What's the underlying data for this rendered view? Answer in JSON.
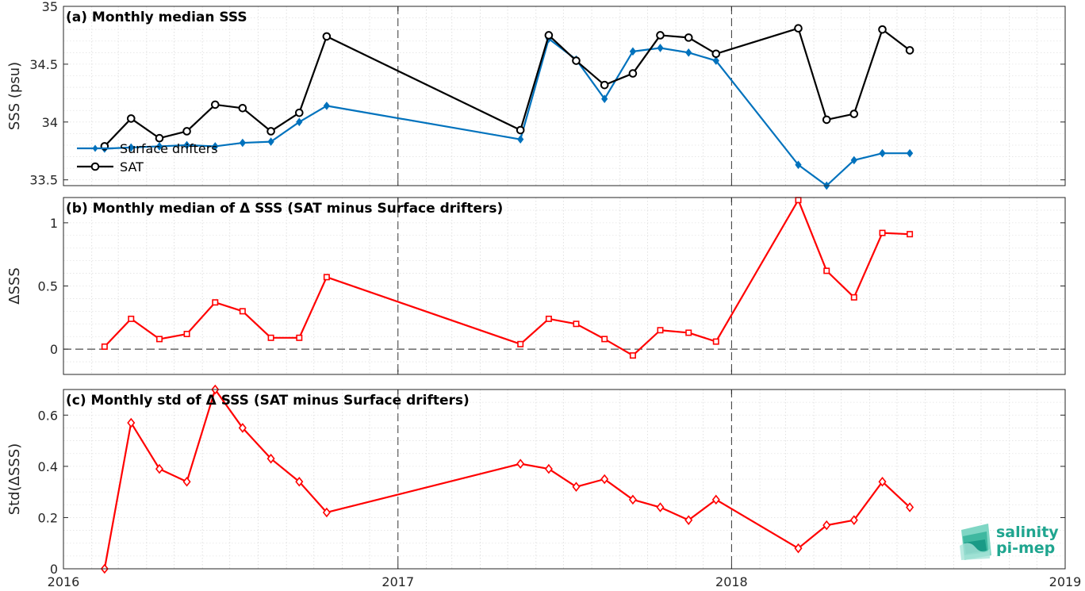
{
  "chart_data": [
    {
      "type": "line",
      "title": "(a) Monthly median SSS",
      "ylabel": "SSS (psu)",
      "ylim": [
        33.45,
        35
      ],
      "yticks": [
        "33.5",
        "34",
        "34.5",
        "35"
      ],
      "xlim": [
        "2016-01-01",
        "2019-01-01"
      ],
      "grid": true,
      "legend": "left",
      "series": [
        {
          "name": "Surface drifters",
          "color": "#0072BD",
          "marker": "diamond",
          "x": [
            "2016-02-15",
            "2016-03-15",
            "2016-04-15",
            "2016-05-15",
            "2016-06-15",
            "2016-07-15",
            "2016-08-15",
            "2016-09-15",
            "2016-10-15",
            "2017-05-15",
            "2017-06-15",
            "2017-07-15",
            "2017-08-15",
            "2017-09-15",
            "2017-10-15",
            "2017-11-15",
            "2017-12-15",
            "2018-03-15",
            "2018-04-15",
            "2018-05-15",
            "2018-06-15",
            "2018-07-15"
          ],
          "values": [
            33.77,
            33.78,
            33.79,
            33.8,
            33.79,
            33.82,
            33.83,
            34.0,
            34.14,
            33.85,
            34.72,
            34.54,
            34.2,
            34.61,
            34.64,
            34.6,
            34.53,
            33.63,
            33.45,
            33.67,
            33.73,
            33.73
          ]
        },
        {
          "name": "SAT",
          "color": "#000000",
          "marker": "circle",
          "x": [
            "2016-02-15",
            "2016-03-15",
            "2016-04-15",
            "2016-05-15",
            "2016-06-15",
            "2016-07-15",
            "2016-08-15",
            "2016-09-15",
            "2016-10-15",
            "2017-05-15",
            "2017-06-15",
            "2017-07-15",
            "2017-08-15",
            "2017-09-15",
            "2017-10-15",
            "2017-11-15",
            "2017-12-15",
            "2018-03-15",
            "2018-04-15",
            "2018-05-15",
            "2018-06-15",
            "2018-07-15"
          ],
          "values": [
            33.79,
            34.03,
            33.86,
            33.92,
            34.15,
            34.12,
            33.92,
            34.08,
            34.74,
            33.93,
            34.75,
            34.53,
            34.32,
            34.42,
            34.75,
            34.73,
            34.59,
            34.81,
            34.02,
            34.07,
            34.8,
            34.62
          ]
        }
      ]
    },
    {
      "type": "line",
      "title": "(b) Monthly median of Δ SSS (SAT minus Surface drifters)",
      "ylabel": "ΔSSS",
      "ylim": [
        -0.2,
        1.2
      ],
      "yticks": [
        "0",
        "0.5",
        "1"
      ],
      "xlim": [
        "2016-01-01",
        "2019-01-01"
      ],
      "grid": true,
      "series": [
        {
          "color": "#FF0000",
          "marker": "square",
          "x": [
            "2016-02-15",
            "2016-03-15",
            "2016-04-15",
            "2016-05-15",
            "2016-06-15",
            "2016-07-15",
            "2016-08-15",
            "2016-09-15",
            "2016-10-15",
            "2017-05-15",
            "2017-06-15",
            "2017-07-15",
            "2017-08-15",
            "2017-09-15",
            "2017-10-15",
            "2017-11-15",
            "2017-12-15",
            "2018-03-15",
            "2018-04-15",
            "2018-05-15",
            "2018-06-15",
            "2018-07-15"
          ],
          "values": [
            0.02,
            0.24,
            0.08,
            0.12,
            0.37,
            0.3,
            0.09,
            0.09,
            0.57,
            0.04,
            0.24,
            0.2,
            0.08,
            -0.05,
            0.15,
            0.13,
            0.06,
            1.18,
            0.62,
            0.41,
            0.92,
            0.91
          ]
        }
      ],
      "reference_line": 0
    },
    {
      "type": "line",
      "title": "(c) Monthly std of Δ SSS (SAT minus Surface drifters)",
      "ylabel": "Std(ΔSSS)",
      "ylim": [
        0,
        0.7
      ],
      "yticks": [
        "0",
        "0.2",
        "0.4",
        "0.6"
      ],
      "xlim": [
        "2016-01-01",
        "2019-01-01"
      ],
      "xticks": [
        "2016",
        "2017",
        "2018",
        "2019"
      ],
      "grid": true,
      "series": [
        {
          "color": "#FF0000",
          "marker": "diamond-open",
          "x": [
            "2016-02-15",
            "2016-03-15",
            "2016-04-15",
            "2016-05-15",
            "2016-06-15",
            "2016-07-15",
            "2016-08-15",
            "2016-09-15",
            "2016-10-15",
            "2017-05-15",
            "2017-06-15",
            "2017-07-15",
            "2017-08-15",
            "2017-09-15",
            "2017-10-15",
            "2017-11-15",
            "2017-12-15",
            "2018-03-15",
            "2018-04-15",
            "2018-05-15",
            "2018-06-15",
            "2018-07-15"
          ],
          "values": [
            0.0,
            0.57,
            0.39,
            0.34,
            0.7,
            0.55,
            0.43,
            0.34,
            0.22,
            0.41,
            0.39,
            0.32,
            0.35,
            0.27,
            0.24,
            0.19,
            0.27,
            0.08,
            0.17,
            0.19,
            0.34,
            0.24
          ]
        }
      ]
    }
  ],
  "logo": {
    "line1": "salinity",
    "line2": "pi-mep"
  }
}
